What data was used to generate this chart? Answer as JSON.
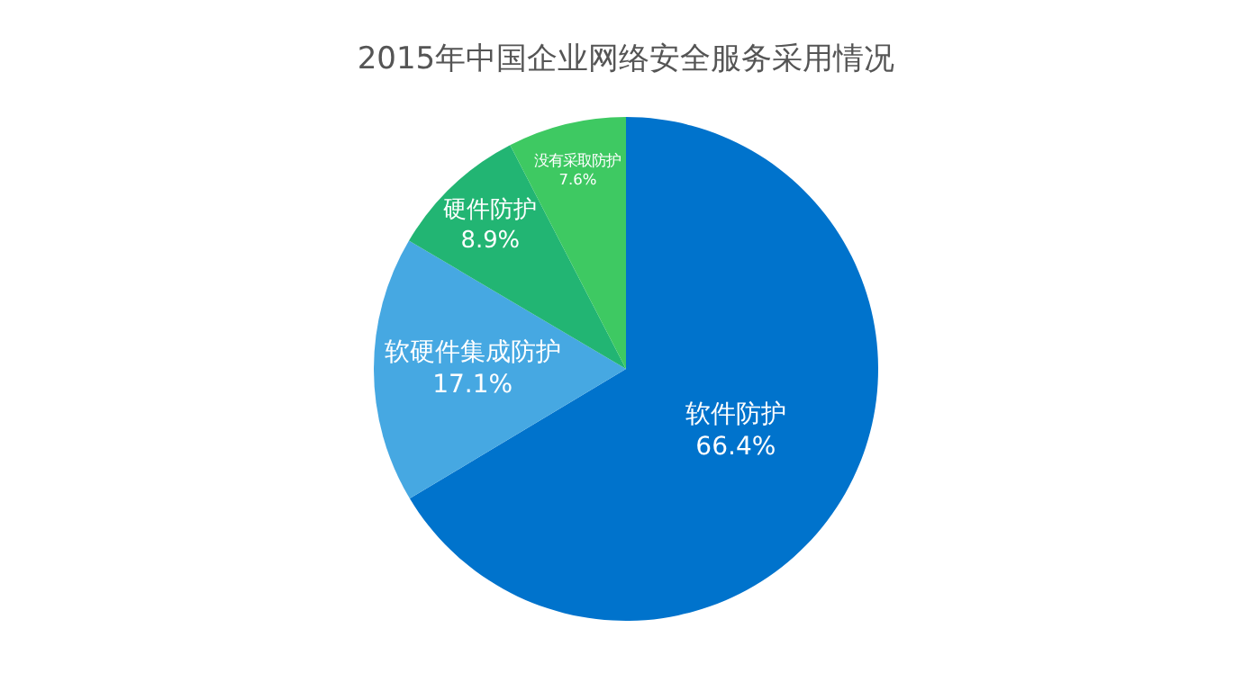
{
  "chart_data": {
    "type": "pie",
    "title": "2015年中国企业网络安全服务采用情况",
    "categories": [
      "软件防护",
      "软硬件集成防护",
      "硬件防护",
      "没有采取防护"
    ],
    "values": [
      66.4,
      17.1,
      8.9,
      7.6
    ],
    "value_labels": [
      "66.4%",
      "17.1%",
      "8.9%",
      "7.6%"
    ],
    "colors": [
      "#0073cc",
      "#46a8e2",
      "#22b573",
      "#3ec962"
    ],
    "legend": false
  }
}
